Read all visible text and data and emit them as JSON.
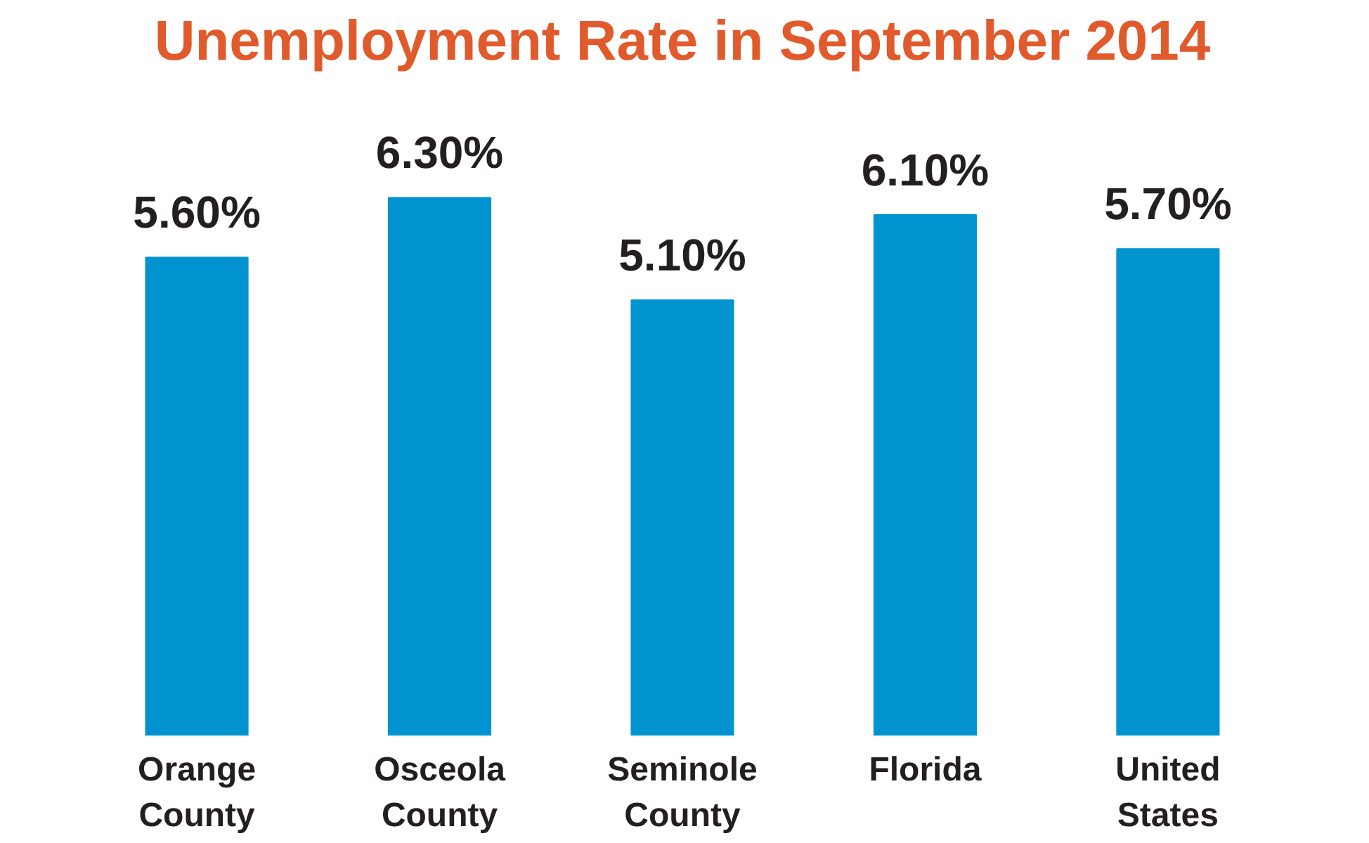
{
  "chart_data": {
    "type": "bar",
    "title": "Unemployment Rate in September 2014",
    "categories": [
      "Orange\nCounty",
      "Osceola\nCounty",
      "Seminole\nCounty",
      "Florida",
      "United\nStates"
    ],
    "values": [
      5.6,
      6.3,
      5.1,
      6.1,
      5.7
    ],
    "value_labels": [
      "5.60%",
      "6.30%",
      "5.10%",
      "6.10%",
      "5.70%"
    ],
    "color": "#0093d0",
    "grid": false
  }
}
